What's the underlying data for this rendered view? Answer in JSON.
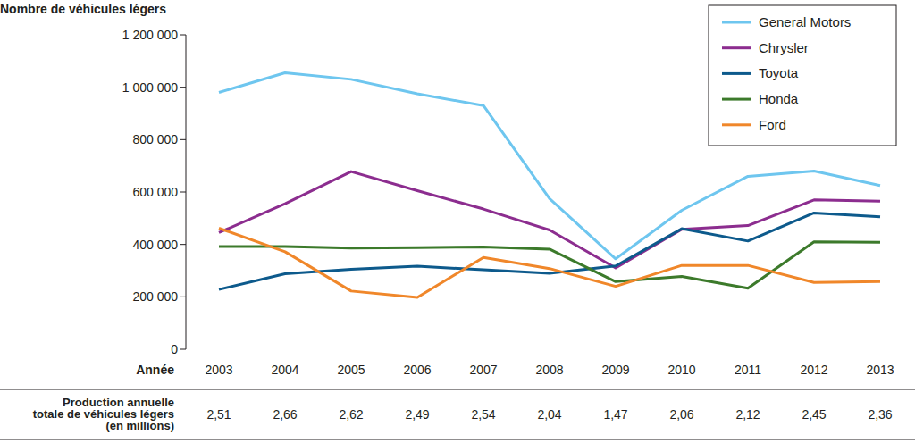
{
  "chart_data": {
    "type": "line",
    "y_label": "Nombre de véhicules légers",
    "x_label": "Année",
    "categories": [
      "2003",
      "2004",
      "2005",
      "2006",
      "2007",
      "2008",
      "2009",
      "2010",
      "2011",
      "2012",
      "2013"
    ],
    "series": [
      {
        "name": "General Motors",
        "color": "#6ec6ef",
        "values": [
          980000,
          1055000,
          1030000,
          975000,
          930000,
          575000,
          345000,
          530000,
          660000,
          680000,
          625000
        ]
      },
      {
        "name": "Chrysler",
        "color": "#8c2d8f",
        "values": [
          445000,
          555000,
          678000,
          605000,
          535000,
          455000,
          310000,
          458000,
          472000,
          570000,
          565000
        ]
      },
      {
        "name": "Toyota",
        "color": "#0d5a8c",
        "values": [
          228000,
          288000,
          305000,
          317000,
          303000,
          290000,
          318000,
          460000,
          413000,
          520000,
          505000
        ]
      },
      {
        "name": "Honda",
        "color": "#3c7a2b",
        "values": [
          392000,
          392000,
          386000,
          388000,
          390000,
          382000,
          258000,
          278000,
          233000,
          410000,
          408000
        ]
      },
      {
        "name": "Ford",
        "color": "#f0872a",
        "values": [
          462000,
          372000,
          222000,
          198000,
          350000,
          308000,
          240000,
          320000,
          320000,
          255000,
          258000
        ]
      }
    ],
    "ylim": [
      0,
      1200000
    ],
    "yticks": [
      {
        "value": 0,
        "label": "0"
      },
      {
        "value": 200000,
        "label": "200 000"
      },
      {
        "value": 400000,
        "label": "400 000"
      },
      {
        "value": 600000,
        "label": "600 000"
      },
      {
        "value": 800000,
        "label": "800 000"
      },
      {
        "value": 1000000,
        "label": "1 000 000"
      },
      {
        "value": 1200000,
        "label": "1 200 000"
      }
    ],
    "grid": false,
    "legend": "top-right",
    "total_production": {
      "label": "Production annuelle\ntotale de véhicules légers\n(en millions)",
      "values": [
        2.51,
        2.66,
        2.62,
        2.49,
        2.54,
        2.04,
        1.47,
        2.06,
        2.12,
        2.45,
        2.36
      ],
      "value_labels": [
        "2,51",
        "2,66",
        "2,62",
        "2,49",
        "2,54",
        "2,04",
        "1,47",
        "2,06",
        "2,12",
        "2,45",
        "2,36"
      ]
    }
  }
}
